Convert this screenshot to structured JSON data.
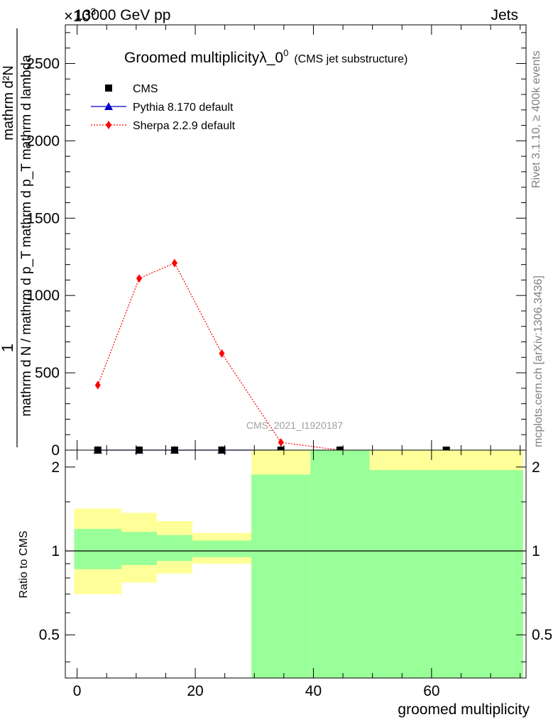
{
  "header": {
    "left": "13000 GeV pp",
    "right": "Jets",
    "exponent_base": "×10",
    "exponent_power": "3"
  },
  "side": {
    "rivet": "Rivet 3.1.10, ≥ 400k events",
    "mcplots": "mcplots.cern.ch [arXiv:1306.3436]"
  },
  "watermark": "CMS_2021_I1920187",
  "chart_data": [
    {
      "type": "line",
      "title": "Groomed multiplicityλ_0",
      "title_sup": "0",
      "subtitle": "(CMS jet substructure)",
      "ylabel_num_one": "1",
      "ylabel_num_dN": "mathrm d²N",
      "ylabel_den": "mathrm d N / mathrm d p_T mathrm d p_T mathrm d lambda",
      "xlim": [
        -2,
        76
      ],
      "ylim": [
        0,
        2750
      ],
      "yticks": [
        0,
        500,
        1000,
        1500,
        2000,
        2500
      ],
      "ytick_labels": [
        "0",
        "500",
        "1000",
        "1500",
        "2000",
        "2500"
      ],
      "legend_position": "top-left",
      "series": [
        {
          "name": "CMS",
          "color": "#000000",
          "marker": "square",
          "x": [
            3.5,
            10.5,
            16.5,
            24.5,
            34.5,
            44.5,
            62.5
          ],
          "y": [
            0,
            0,
            0,
            0,
            0,
            0,
            0
          ]
        },
        {
          "name": "Pythia 8.170 default",
          "color": "#0000cc",
          "marker": "triangle",
          "line": "solid",
          "x": [
            3.5,
            10.5,
            16.5,
            24.5,
            34.5
          ],
          "y": [
            0,
            0,
            0,
            0,
            0
          ]
        },
        {
          "name": "Sherpa 2.2.9 default",
          "color": "#ff0000",
          "marker": "diamond",
          "line": "dotted",
          "x": [
            3.5,
            10.5,
            16.5,
            24.5,
            34.5,
            44.5
          ],
          "y": [
            420,
            1110,
            1210,
            625,
            50,
            0
          ]
        }
      ]
    },
    {
      "type": "area",
      "ylabel": "Ratio to CMS",
      "xlabel": "groomed multiplicity",
      "xlim": [
        -2,
        76
      ],
      "ylim": [
        0.35,
        2.3
      ],
      "xticks": [
        0,
        20,
        40,
        60
      ],
      "xtick_labels": [
        "0",
        "20",
        "40",
        "60"
      ],
      "yticks": [
        0.5,
        1,
        2
      ],
      "ytick_labels": [
        "0.5",
        "1",
        "2"
      ],
      "reference_line": 1,
      "bands": {
        "colors": {
          "outer": "#ffff99",
          "inner": "#99ff99"
        },
        "bins": [
          {
            "lo": -0.5,
            "hi": 7.5,
            "outer": [
              0.7,
              1.42
            ],
            "inner": [
              0.86,
              1.2
            ]
          },
          {
            "lo": 7.5,
            "hi": 13.5,
            "outer": [
              0.77,
              1.37
            ],
            "inner": [
              0.89,
              1.17
            ]
          },
          {
            "lo": 13.5,
            "hi": 19.5,
            "outer": [
              0.83,
              1.28
            ],
            "inner": [
              0.92,
              1.14
            ]
          },
          {
            "lo": 19.5,
            "hi": 29.5,
            "outer": [
              0.9,
              1.16
            ],
            "inner": [
              0.95,
              1.09
            ]
          },
          {
            "lo": 29.5,
            "hi": 39.5,
            "outer": [
              0.35,
              2.3
            ],
            "inner": [
              0.35,
              1.88
            ]
          },
          {
            "lo": 39.5,
            "hi": 49.5,
            "outer": [
              0.35,
              2.3
            ],
            "inner": [
              0.35,
              2.3
            ]
          },
          {
            "lo": 49.5,
            "hi": 75.5,
            "outer": [
              0.35,
              2.3
            ],
            "inner": [
              0.35,
              1.95
            ]
          }
        ]
      }
    }
  ]
}
